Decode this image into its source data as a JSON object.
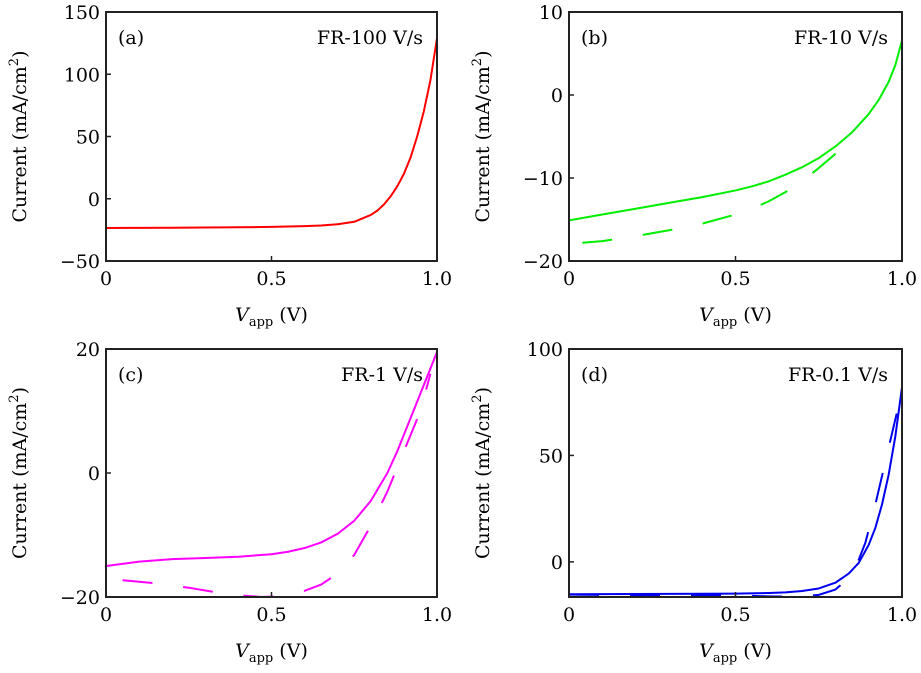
{
  "figure": {
    "ylabel_main": "Current (mA/cm",
    "ylabel_sup": "2",
    "ylabel_close": ")",
    "xlabel_var": "V",
    "xlabel_sub": "app",
    "xlabel_unit": " (V)"
  },
  "chart_data": [
    {
      "type": "line",
      "panel_label": "(a)",
      "title": "FR-100 V/s",
      "xlabel": "V_app (V)",
      "ylabel": "Current (mA/cm^2)",
      "xlim": [
        0,
        1.0
      ],
      "ylim": [
        -50,
        150
      ],
      "xticks": [
        0,
        0.5,
        1.0
      ],
      "xtick_labels": [
        "0",
        "0.5",
        "1.0"
      ],
      "yticks": [
        -50,
        0,
        50,
        100,
        150
      ],
      "ytick_labels": [
        "−50",
        "0",
        "50",
        "100",
        "150"
      ],
      "color": "#ff0000",
      "series": [
        {
          "name": "forward",
          "style": "solid",
          "x": [
            0,
            0.1,
            0.2,
            0.3,
            0.4,
            0.5,
            0.6,
            0.65,
            0.7,
            0.75,
            0.8,
            0.82,
            0.84,
            0.86,
            0.88,
            0.9,
            0.92,
            0.94,
            0.96,
            0.98,
            1.0
          ],
          "y": [
            -23.5,
            -23.4,
            -23.3,
            -23.1,
            -22.9,
            -22.6,
            -22.0,
            -21.5,
            -20.5,
            -18.5,
            -13,
            -9.5,
            -4.5,
            2,
            10,
            20,
            33,
            50,
            70,
            95,
            129
          ]
        }
      ]
    },
    {
      "type": "line",
      "panel_label": "(b)",
      "title": "FR-10 V/s",
      "xlabel": "V_app (V)",
      "ylabel": "Current (mA/cm^2)",
      "xlim": [
        0,
        1.0
      ],
      "ylim": [
        -20,
        10
      ],
      "xticks": [
        0,
        0.5,
        1.0
      ],
      "xtick_labels": [
        "0",
        "0.5",
        "1.0"
      ],
      "yticks": [
        -20,
        -10,
        0,
        10
      ],
      "ytick_labels": [
        "−20",
        "−10",
        "0",
        "10"
      ],
      "color": "#00ee00",
      "series": [
        {
          "name": "forward",
          "style": "solid",
          "x": [
            0,
            0.1,
            0.2,
            0.3,
            0.4,
            0.5,
            0.55,
            0.6,
            0.65,
            0.7,
            0.75,
            0.8,
            0.85,
            0.9,
            0.93,
            0.96,
            0.98,
            1.0
          ],
          "y": [
            -15.1,
            -14.4,
            -13.7,
            -13.0,
            -12.3,
            -11.5,
            -11.0,
            -10.4,
            -9.6,
            -8.7,
            -7.6,
            -6.2,
            -4.5,
            -2.3,
            -0.6,
            1.6,
            3.6,
            6.6
          ]
        },
        {
          "name": "reverse",
          "style": "dashed",
          "x": [
            0.04,
            0.1,
            0.2,
            0.3,
            0.4,
            0.5,
            0.55,
            0.6,
            0.65,
            0.7,
            0.75,
            0.8,
            0.82
          ],
          "y": [
            -17.8,
            -17.6,
            -17.0,
            -16.3,
            -15.5,
            -14.4,
            -13.7,
            -12.8,
            -11.7,
            -10.4,
            -8.8,
            -7.1,
            -6.5
          ]
        }
      ]
    },
    {
      "type": "line",
      "panel_label": "(c)",
      "title": "FR-1 V/s",
      "xlabel": "V_app (V)",
      "ylabel": "Current (mA/cm^2)",
      "xlim": [
        0,
        1.0
      ],
      "ylim": [
        -20,
        20
      ],
      "xticks": [
        0,
        0.5,
        1.0
      ],
      "xtick_labels": [
        "0",
        "0.5",
        "1.0"
      ],
      "yticks": [
        -20,
        0,
        20
      ],
      "ytick_labels": [
        "−20",
        "0",
        "20"
      ],
      "color": "#ff00ff",
      "series": [
        {
          "name": "forward",
          "style": "solid",
          "x": [
            0,
            0.1,
            0.2,
            0.3,
            0.4,
            0.5,
            0.55,
            0.6,
            0.65,
            0.7,
            0.75,
            0.8,
            0.85,
            0.88,
            0.91,
            0.94,
            0.97,
            1.0
          ],
          "y": [
            -15.0,
            -14.3,
            -13.9,
            -13.7,
            -13.5,
            -13.1,
            -12.7,
            -12.1,
            -11.2,
            -9.8,
            -7.7,
            -4.5,
            0.0,
            3.5,
            7.5,
            11.5,
            15.5,
            19.5
          ]
        },
        {
          "name": "reverse",
          "style": "dashed",
          "x": [
            0.05,
            0.15,
            0.25,
            0.35,
            0.42,
            0.47,
            0.52,
            0.6,
            0.65,
            0.7,
            0.75,
            0.8,
            0.85,
            0.9,
            0.95,
            0.98
          ],
          "y": [
            -17.3,
            -17.8,
            -18.5,
            -19.4,
            -19.8,
            -20.0,
            -19.9,
            -19.0,
            -18.0,
            -16.2,
            -13.2,
            -8.5,
            -3.0,
            3.5,
            10.0,
            16.0
          ]
        }
      ]
    },
    {
      "type": "line",
      "panel_label": "(d)",
      "title": "FR-0.1 V/s",
      "xlabel": "V_app (V)",
      "ylabel": "Current (mA/cm^2)",
      "xlim": [
        0,
        1.0
      ],
      "ylim": [
        -16.5,
        100
      ],
      "xticks": [
        0,
        0.5,
        1.0
      ],
      "xtick_labels": [
        "0",
        "0.5",
        "1.0"
      ],
      "yticks": [
        0,
        50,
        100
      ],
      "ytick_labels": [
        "0",
        "50",
        "100"
      ],
      "color": "#0000ee",
      "series": [
        {
          "name": "forward",
          "style": "solid",
          "x": [
            0,
            0.2,
            0.4,
            0.5,
            0.6,
            0.65,
            0.7,
            0.75,
            0.8,
            0.84,
            0.87,
            0.9,
            0.92,
            0.94,
            0.96,
            0.98,
            1.0
          ],
          "y": [
            -15.2,
            -15.1,
            -15.0,
            -14.9,
            -14.6,
            -14.3,
            -13.7,
            -12.5,
            -9.8,
            -5.5,
            -0.5,
            8,
            16,
            27,
            41,
            59,
            82
          ]
        },
        {
          "name": "reverse",
          "style": "dashed",
          "x": [
            0,
            0.2,
            0.4,
            0.5,
            0.6,
            0.65,
            0.7,
            0.75,
            0.8,
            0.83,
            0.86,
            0.89,
            0.92,
            0.95,
            0.98,
            1.0
          ],
          "y": [
            -15.4,
            -15.6,
            -15.7,
            -15.8,
            -16.2,
            -16.3,
            -16.2,
            -15.5,
            -13,
            -9,
            -3,
            9,
            27,
            47,
            67,
            80
          ]
        }
      ]
    }
  ]
}
